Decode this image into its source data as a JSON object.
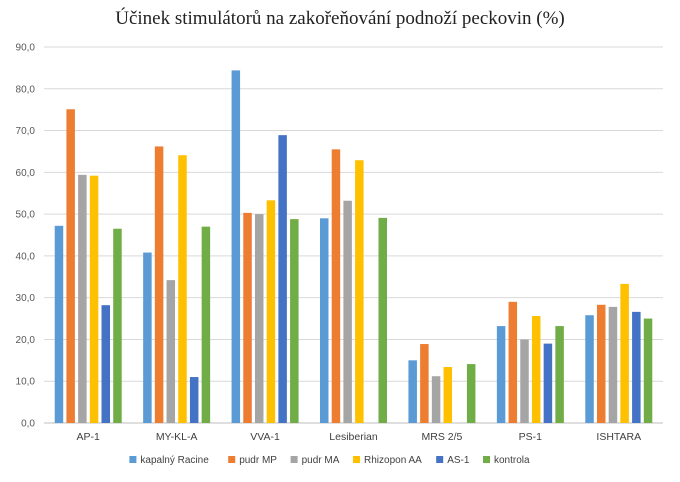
{
  "chart_data": {
    "type": "bar",
    "title": "Účinek stimulátorů na zakořeňování podnoží peckovin (%)",
    "xlabel": "",
    "ylabel": "",
    "ylim": [
      0,
      90
    ],
    "ytick_step": 10,
    "ytick_labels": [
      "0,0",
      "10,0",
      "20,0",
      "30,0",
      "40,0",
      "50,0",
      "60,0",
      "70,0",
      "80,0",
      "90,0"
    ],
    "grid": true,
    "legend_position": "bottom",
    "categories": [
      "AP-1",
      "MY-KL-A",
      "VVA-1",
      "Lesiberian",
      "MRS 2/5",
      "PS-1",
      "ISHTARA"
    ],
    "series": [
      {
        "name": "kapalný Racine",
        "color": "#5B9BD5",
        "values": [
          47.2,
          40.8,
          84.4,
          49.0,
          15.0,
          23.2,
          25.8
        ]
      },
      {
        "name": "pudr MP",
        "color": "#ED7D31",
        "values": [
          75.1,
          66.2,
          50.3,
          65.5,
          18.9,
          29.0,
          28.3
        ]
      },
      {
        "name": "pudr MA",
        "color": "#A5A5A5",
        "values": [
          59.4,
          34.2,
          50.0,
          53.2,
          11.2,
          20.0,
          27.8
        ]
      },
      {
        "name": "Rhizopon AA",
        "color": "#FFC000",
        "values": [
          59.2,
          64.1,
          53.3,
          62.9,
          13.4,
          25.6,
          33.3
        ]
      },
      {
        "name": "AS-1",
        "color": "#4472C4",
        "values": [
          28.2,
          11.0,
          68.9,
          null,
          null,
          19.0,
          26.6
        ]
      },
      {
        "name": "kontrola",
        "color": "#70AD47",
        "values": [
          46.5,
          47.0,
          48.8,
          49.1,
          14.1,
          23.2,
          25.0
        ]
      }
    ]
  }
}
